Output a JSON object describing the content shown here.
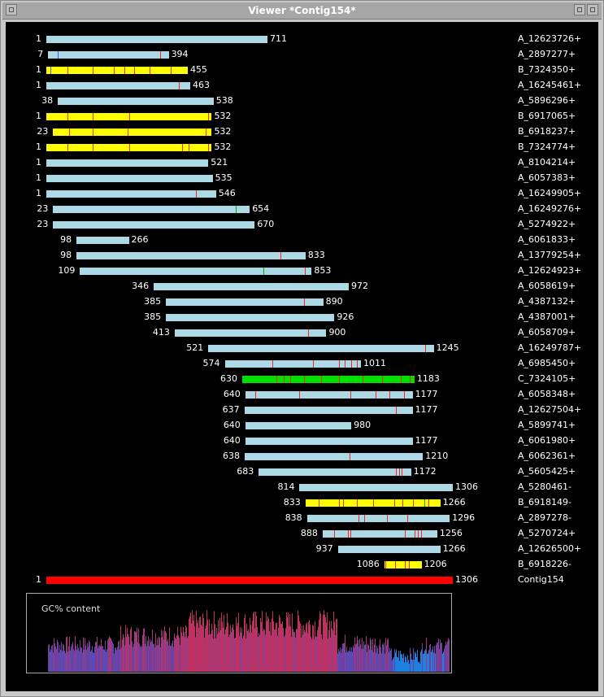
{
  "window": {
    "title": "Viewer *Contig154*"
  },
  "gc": {
    "label": "GC% content"
  },
  "reads": [
    {
      "start": "1",
      "end": "711",
      "name": "A_12623726+",
      "color": "blue",
      "ticks": []
    },
    {
      "start": "7",
      "end": "394",
      "name": "A_2897277+",
      "color": "blue",
      "ticks": [
        [
          "blue",
          0.08
        ],
        [
          "red",
          0.93
        ]
      ]
    },
    {
      "start": "1",
      "end": "455",
      "name": "B_7324350+",
      "color": "yellow",
      "ticks": [
        [
          "blue",
          0.03
        ],
        [
          "red",
          0.15
        ],
        [
          "red",
          0.33
        ],
        [
          "red",
          0.48
        ],
        [
          "red",
          0.55
        ],
        [
          "red",
          0.62
        ],
        [
          "red",
          0.73
        ],
        [
          "red",
          0.88
        ]
      ]
    },
    {
      "start": "1",
      "end": "463",
      "name": "A_16245461+",
      "color": "blue",
      "ticks": [
        [
          "red",
          0.92
        ]
      ]
    },
    {
      "start": "38",
      "end": "538",
      "name": "A_5896296+",
      "color": "blue",
      "ticks": []
    },
    {
      "start": "1",
      "end": "532",
      "name": "B_6917065+",
      "color": "yellow",
      "ticks": [
        [
          "red",
          0.13
        ],
        [
          "red",
          0.28
        ],
        [
          "red",
          0.5
        ],
        [
          "red",
          0.98
        ]
      ]
    },
    {
      "start": "23",
      "end": "532",
      "name": "B_6918237+",
      "color": "yellow",
      "ticks": [
        [
          "red",
          0.1
        ],
        [
          "red",
          0.25
        ],
        [
          "red",
          0.47
        ],
        [
          "red",
          0.96
        ]
      ]
    },
    {
      "start": "1",
      "end": "532",
      "name": "B_7324774+",
      "color": "yellow",
      "ticks": [
        [
          "red",
          0.13
        ],
        [
          "red",
          0.28
        ],
        [
          "red",
          0.5
        ],
        [
          "red",
          0.82
        ],
        [
          "red",
          0.86
        ],
        [
          "red",
          0.98
        ]
      ]
    },
    {
      "start": "1",
      "end": "521",
      "name": "A_8104214+",
      "color": "blue",
      "ticks": []
    },
    {
      "start": "1",
      "end": "535",
      "name": "A_6057383+",
      "color": "blue",
      "ticks": []
    },
    {
      "start": "1",
      "end": "546",
      "name": "A_16249905+",
      "color": "blue",
      "ticks": [
        [
          "red",
          0.88
        ]
      ]
    },
    {
      "start": "23",
      "end": "654",
      "name": "A_16249276+",
      "color": "blue",
      "ticks": [
        [
          "green",
          0.93
        ]
      ]
    },
    {
      "start": "23",
      "end": "670",
      "name": "A_5274922+",
      "color": "blue",
      "ticks": []
    },
    {
      "start": "98",
      "end": "266",
      "name": "A_6061833+",
      "color": "blue",
      "ticks": []
    },
    {
      "start": "98",
      "end": "833",
      "name": "A_13779254+",
      "color": "blue",
      "ticks": [
        [
          "red",
          0.89
        ]
      ]
    },
    {
      "start": "109",
      "end": "853",
      "name": "A_12624923+",
      "color": "blue",
      "ticks": [
        [
          "green",
          0.79
        ],
        [
          "red",
          0.97
        ]
      ]
    },
    {
      "start": "346",
      "end": "972",
      "name": "A_6058619+",
      "color": "blue",
      "ticks": []
    },
    {
      "start": "385",
      "end": "890",
      "name": "A_4387132+",
      "color": "blue",
      "ticks": [
        [
          "red",
          0.88
        ]
      ]
    },
    {
      "start": "385",
      "end": "926",
      "name": "A_4387001+",
      "color": "blue",
      "ticks": []
    },
    {
      "start": "413",
      "end": "900",
      "name": "A_6058709+",
      "color": "blue",
      "ticks": [
        [
          "red",
          0.88
        ]
      ]
    },
    {
      "start": "521",
      "end": "1245",
      "name": "A_16249787+",
      "color": "blue",
      "ticks": [
        [
          "red",
          0.96
        ]
      ]
    },
    {
      "start": "574",
      "end": "1011",
      "name": "A_6985450+",
      "color": "blue",
      "ticks": [
        [
          "red",
          0.35
        ],
        [
          "red",
          0.65
        ],
        [
          "red",
          0.84
        ],
        [
          "red",
          0.88
        ],
        [
          "red",
          0.93
        ],
        [
          "red",
          0.97
        ]
      ]
    },
    {
      "start": "630",
      "end": "1183",
      "name": "C_7324105+",
      "color": "green",
      "ticks": [
        [
          "red",
          0.2
        ],
        [
          "red",
          0.24
        ],
        [
          "red",
          0.28
        ],
        [
          "red",
          0.36
        ],
        [
          "red",
          0.46
        ],
        [
          "red",
          0.56
        ],
        [
          "red",
          0.7
        ],
        [
          "red",
          0.81
        ],
        [
          "red",
          0.92
        ],
        [
          "red",
          0.97
        ]
      ]
    },
    {
      "start": "640",
      "end": "1177",
      "name": "A_6058348+",
      "color": "blue",
      "ticks": [
        [
          "red",
          0.06
        ],
        [
          "red",
          0.32
        ],
        [
          "red",
          0.63
        ],
        [
          "red",
          0.78
        ],
        [
          "red",
          0.86
        ],
        [
          "red",
          0.95
        ]
      ]
    },
    {
      "start": "637",
      "end": "1177",
      "name": "A_12627504+",
      "color": "blue",
      "ticks": [
        [
          "red",
          0.9
        ]
      ]
    },
    {
      "start": "640",
      "end": "980",
      "name": "A_5899741+",
      "color": "blue",
      "ticks": []
    },
    {
      "start": "640",
      "end": "1177",
      "name": "A_6061980+",
      "color": "blue",
      "ticks": []
    },
    {
      "start": "638",
      "end": "1210",
      "name": "A_6062361+",
      "color": "blue",
      "ticks": [
        [
          "red",
          0.59
        ]
      ]
    },
    {
      "start": "683",
      "end": "1172",
      "name": "A_5605425+",
      "color": "blue",
      "ticks": [
        [
          "red",
          0.9
        ],
        [
          "red",
          0.92
        ],
        [
          "red",
          0.94
        ]
      ]
    },
    {
      "start": "814",
      "end": "1306",
      "name": "A_5280461-",
      "color": "blue",
      "ticks": []
    },
    {
      "start": "833",
      "end": "1266",
      "name": "B_6918149-",
      "color": "yellow",
      "ticks": [
        [
          "red",
          0.1
        ],
        [
          "red",
          0.25
        ],
        [
          "red",
          0.28
        ],
        [
          "red",
          0.38
        ],
        [
          "red",
          0.5
        ],
        [
          "red",
          0.66
        ],
        [
          "red",
          0.72
        ],
        [
          "red",
          0.8
        ],
        [
          "green",
          0.88
        ],
        [
          "red",
          0.91
        ]
      ]
    },
    {
      "start": "838",
      "end": "1296",
      "name": "A_2897278-",
      "color": "blue",
      "ticks": [
        [
          "red",
          0.36
        ],
        [
          "red",
          0.4
        ],
        [
          "red",
          0.56
        ],
        [
          "red",
          0.7
        ]
      ]
    },
    {
      "start": "888",
      "end": "1256",
      "name": "A_5270724+",
      "color": "blue",
      "ticks": [
        [
          "red",
          0.1
        ],
        [
          "red",
          0.22
        ],
        [
          "red",
          0.24
        ],
        [
          "red",
          0.72
        ],
        [
          "red",
          0.8
        ],
        [
          "red",
          0.83
        ],
        [
          "red",
          0.86
        ]
      ]
    },
    {
      "start": "937",
      "end": "1266",
      "name": "A_12626500+",
      "color": "blue",
      "ticks": []
    },
    {
      "start": "1086",
      "end": "1206",
      "name": "B_6918226-",
      "color": "yellow",
      "ticks": [
        [
          "red",
          0.02
        ],
        [
          "red",
          0.3
        ],
        [
          "red",
          0.55
        ],
        [
          "red",
          0.65
        ]
      ]
    },
    {
      "start": "1",
      "end": "1306",
      "name": "Contig154",
      "color": "red",
      "ticks": []
    }
  ]
}
